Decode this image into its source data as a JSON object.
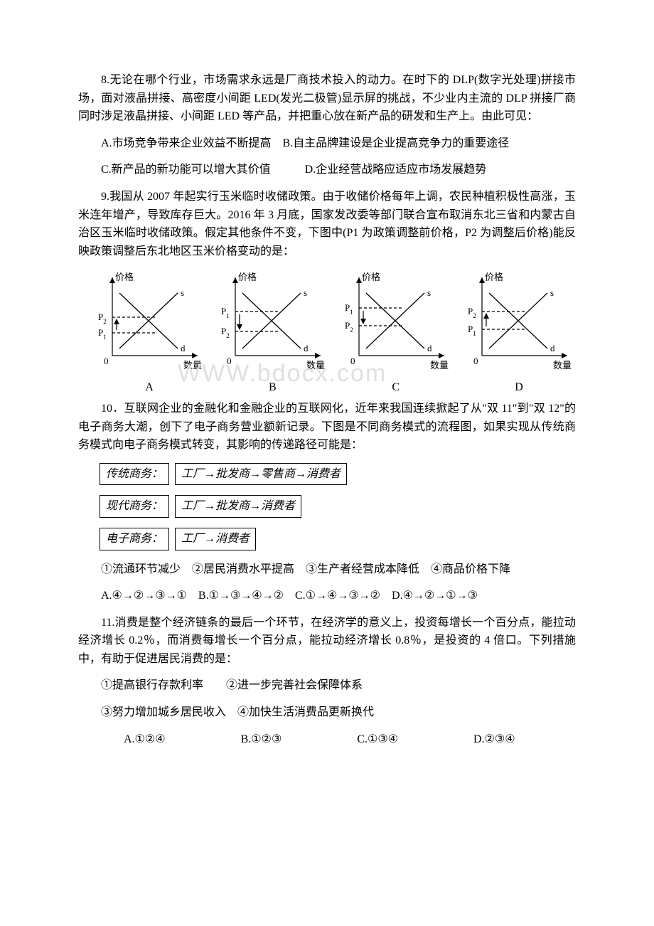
{
  "watermark": "WWW.bdocx.com",
  "q8": {
    "text": "8.无论在哪个行业，市场需求永远是厂商技术投入的动力。在时下的 DLP(数字光处理)拼接市场，面对液晶拼接、高密度小间距 LED(发光二极管)显示屏的挑战，不少业内主流的 DLP 拼接厂商同时涉足液晶拼接、小间距 LED 等产品，并把重心放在新产品的研发和生产上。由此可见：",
    "optAB": "A.市场竞争带来企业效益不断提高　B.自主品牌建设是企业提高竞争力的重要途径",
    "optCD": "C.新产品的新功能可以增大其价值　　　D.企业经营战略应适应市场发展趋势"
  },
  "q9": {
    "text": "9.我国从 2007 年起实行玉米临时收储政策。由于收储价格每年上调，农民种植积极性高涨，玉米连年增产，导致库存巨大。2016 年 3 月底，国家发改委等部门联合宣布取消东北三省和内蒙古自治区玉米临时收储政策。假定其他条件不变，下图中(P1 为政策调整前价格，P2 为调整后价格)能反映政策调整后东北地区玉米价格变动的是：",
    "charts": [
      {
        "id": "A",
        "p1y": 90,
        "p2y": 68,
        "arrow": "up",
        "s_label": "s",
        "d_label": "d",
        "y_axis": "价格",
        "x_axis": "数量"
      },
      {
        "id": "B",
        "p1y": 60,
        "p2y": 88,
        "arrow": "down",
        "s_label": "s",
        "d_label": "d",
        "y_axis": "价格",
        "x_axis": "数量"
      },
      {
        "id": "C",
        "p1y": 55,
        "p2y": 80,
        "arrow": "down",
        "s_label": "s",
        "d_label": "d",
        "y_axis": "价格",
        "x_axis": "数量"
      },
      {
        "id": "D",
        "p1y": 85,
        "p2y": 60,
        "arrow": "up",
        "s_label": "s",
        "d_label": "d",
        "y_axis": "价格",
        "x_axis": "数量"
      }
    ],
    "chart_style": {
      "width": 160,
      "height": 150,
      "axis_color": "#000000",
      "line_color": "#000000",
      "dash": "4,3"
    }
  },
  "q10": {
    "text": "10．互联网企业的金融化和金融企业的互联网化，近年来我国连续掀起了从\"双 11\"到\"双 12\"的电子商务大潮，创下了电子商务营业额新记录。下图是不同商务模式的流程图，如果实现从传统商务模式向电子商务模式转变，其影响的传递路径可能是：",
    "flows": [
      {
        "label": "传统商务：",
        "chain": "工厂→批发商→零售商→消费者"
      },
      {
        "label": "现代商务：",
        "chain": "工厂→批发商→消费者"
      },
      {
        "label": "电子商务：",
        "chain": "工厂→消费者"
      }
    ],
    "subopts": "①流通环节减少　②居民消费水平提高　③生产者经营成本降低　④商品价格下降",
    "choices": "A.④→②→③→①　B.①→③→④→②　C.①→④→③→②　D.④→②→①→③"
  },
  "q11": {
    "text": "11.消费是整个经济链条的最后一个环节，在经济学的意义上，投资每增长一个百分点，能拉动经济增长 0.2％，而消费每增长一个百分点，能拉动经济增长 0.8％，是投资的 4 倍口。下列措施中，有助于促进居民消费的是：",
    "line1": "①提高银行存款利率　　②进一步完善社会保障体系",
    "line2": "③努力增加城乡居民收入　④加快生活消费品更新换代",
    "optA": "A.①②④",
    "optB": "B.①②③",
    "optC": "C.①③④",
    "optD": "D.②③④"
  }
}
